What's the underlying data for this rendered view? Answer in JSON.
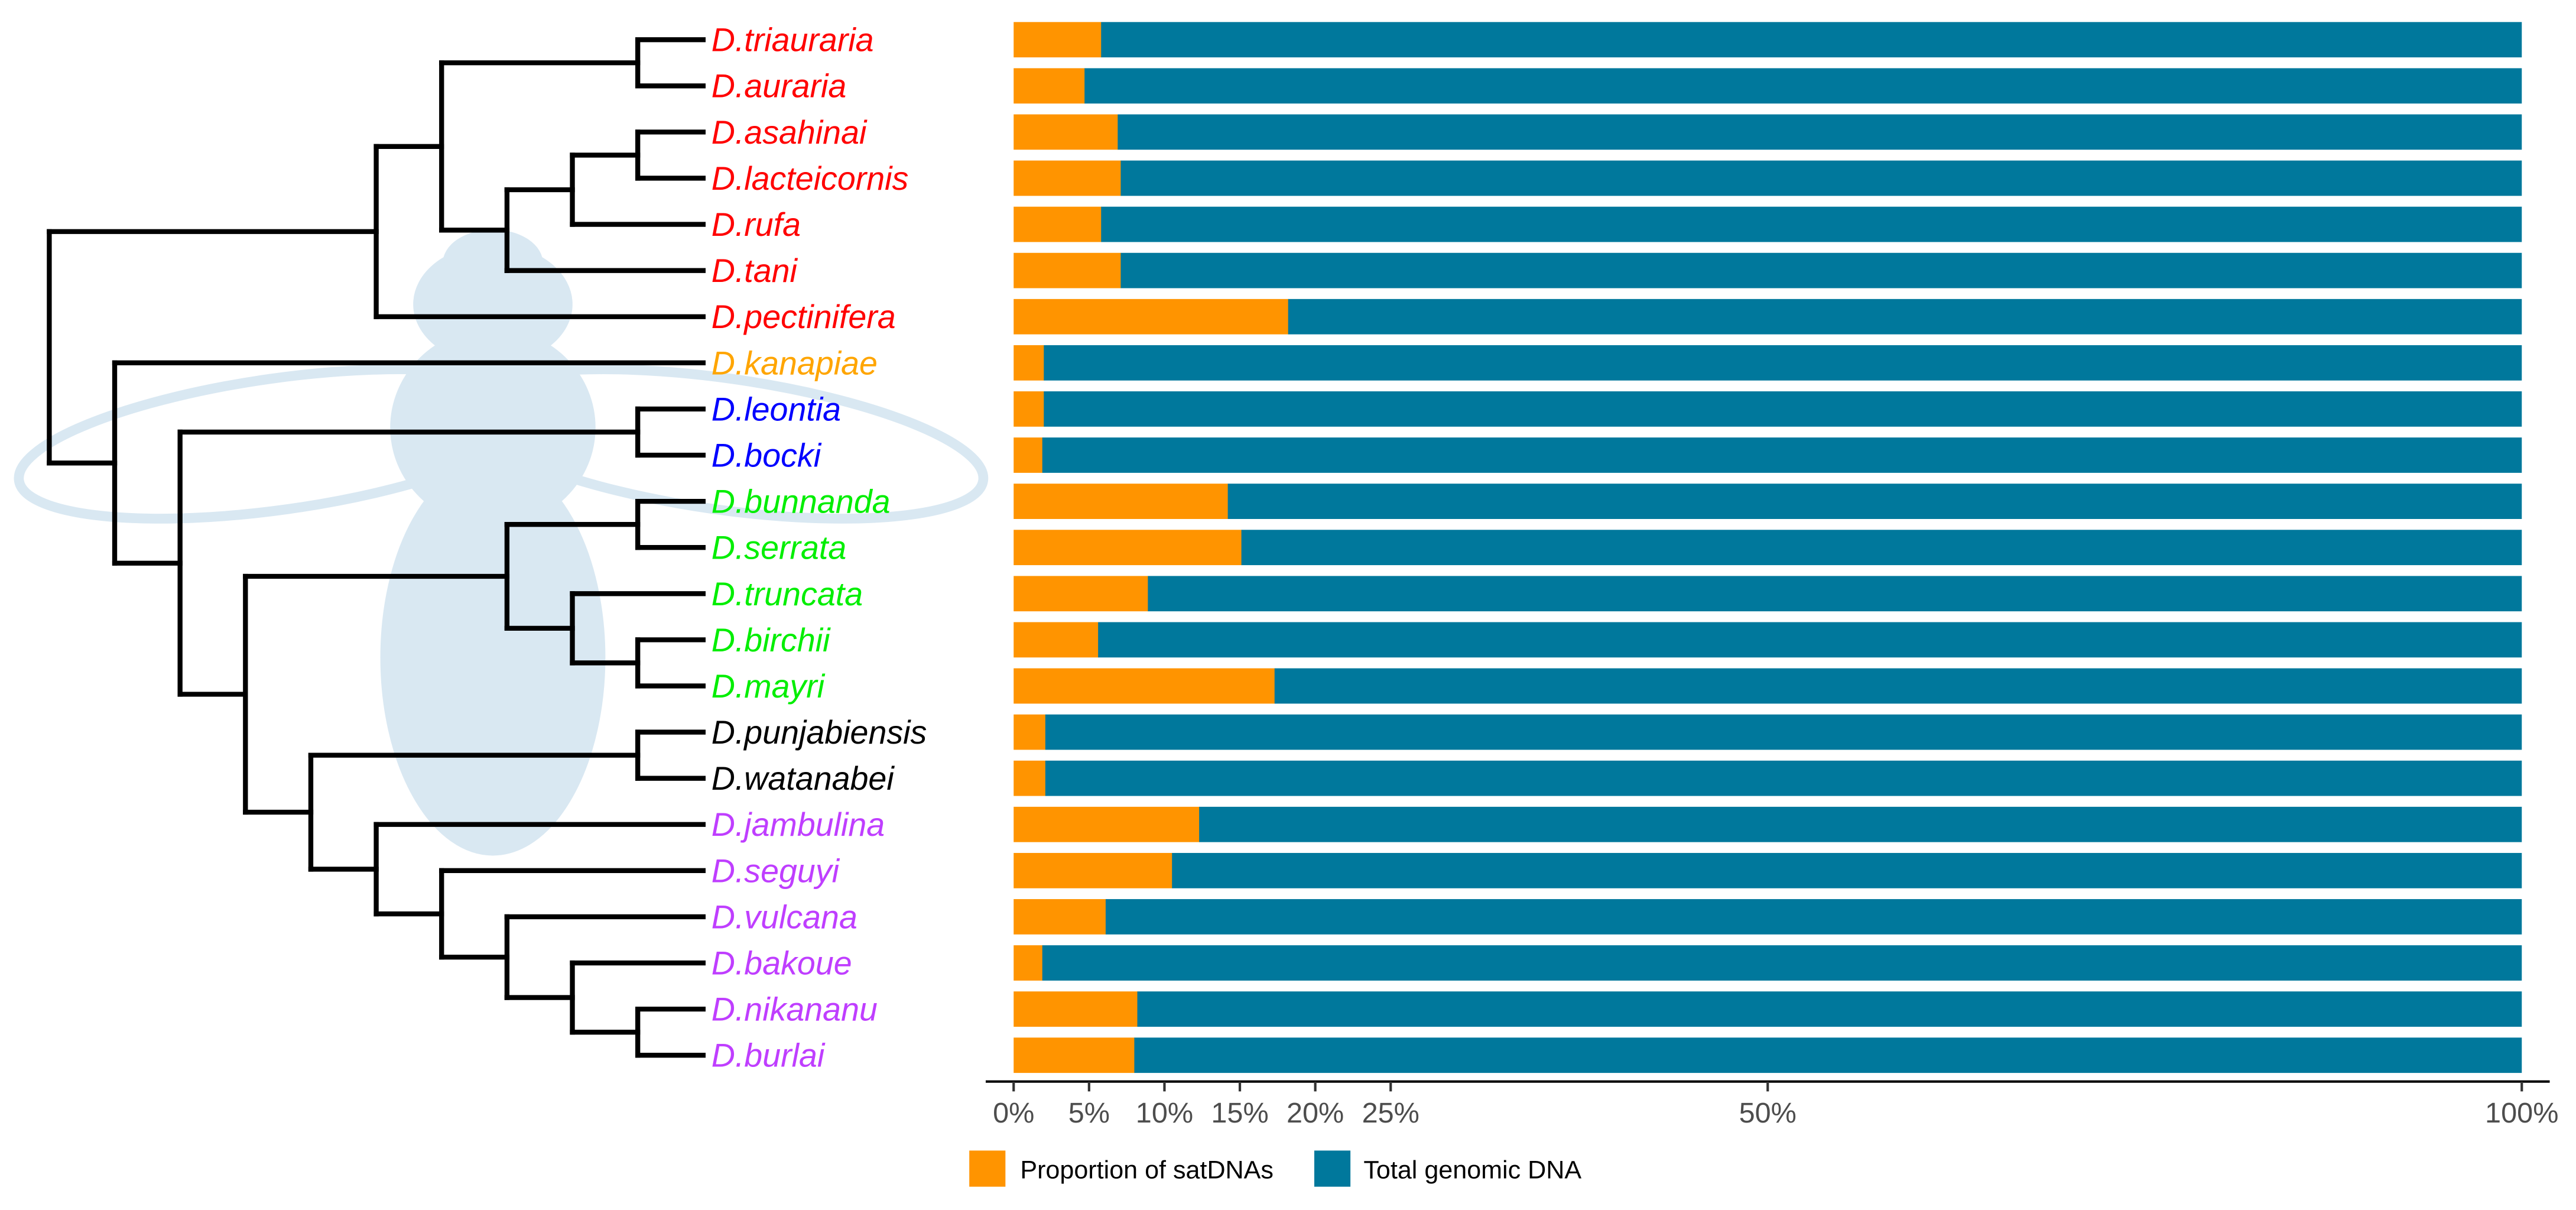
{
  "chart_data": {
    "type": "bar",
    "orientation": "horizontal",
    "stacked": true,
    "title": "",
    "xlabel": "",
    "ylabel": "",
    "xlim": [
      0,
      100
    ],
    "x_ticks": [
      0,
      5,
      10,
      15,
      20,
      25,
      50,
      100
    ],
    "x_tick_labels": [
      "0%",
      "5%",
      "10%",
      "15%",
      "20%",
      "25%",
      "50%",
      "100%"
    ],
    "grid": false,
    "legend_position": "bottom",
    "categories": [
      "D.triauraria",
      "D.auraria",
      "D.asahinai",
      "D.lacteicornis",
      "D.rufa",
      "D.tani",
      "D.pectinifera",
      "D.kanapiae",
      "D.leontia",
      "D.bocki",
      "D.bunnanda",
      "D.serrata",
      "D.truncata",
      "D.birchii",
      "D.mayri",
      "D.punjabiensis",
      "D.watanabei",
      "D.jambulina",
      "D.seguyi",
      "D.vulcana",
      "D.bakoue",
      "D.nikananu",
      "D.burlai"
    ],
    "label_colors": [
      "#FF0000",
      "#FF0000",
      "#FF0000",
      "#FF0000",
      "#FF0000",
      "#FF0000",
      "#FF0000",
      "#FFA500",
      "#0000FF",
      "#0000FF",
      "#00EE00",
      "#00EE00",
      "#00EE00",
      "#00EE00",
      "#00EE00",
      "#000000",
      "#000000",
      "#BF3EFF",
      "#BF3EFF",
      "#BF3EFF",
      "#BF3EFF",
      "#BF3EFF",
      "#BF3EFF"
    ],
    "series": [
      {
        "name": "Proportion of satDNAs",
        "color": "#FF9400",
        "values": [
          5.8,
          4.7,
          6.9,
          7.1,
          5.8,
          7.1,
          18.2,
          2.0,
          2.0,
          1.9,
          14.2,
          15.1,
          8.9,
          5.6,
          17.3,
          2.1,
          2.1,
          12.3,
          10.5,
          6.1,
          1.9,
          8.2,
          8.0
        ]
      },
      {
        "name": "Total genomic DNA",
        "color": "#00789C",
        "values": [
          94.2,
          95.3,
          93.1,
          92.9,
          94.2,
          92.9,
          81.8,
          98.0,
          98.0,
          98.1,
          85.8,
          84.9,
          91.1,
          94.4,
          82.7,
          97.9,
          97.9,
          87.7,
          89.5,
          93.9,
          98.1,
          91.8,
          92.0
        ]
      }
    ],
    "tree": [
      [
        [
          [
            0,
            1
          ],
          [
            [
              [
                2,
                3
              ],
              4
            ],
            5
          ]
        ],
        6
      ],
      [
        7,
        [
          [
            8,
            9
          ],
          [
            [
              [
                10,
                11
              ],
              [
                12,
                [
                  13,
                  14
                ]
              ]
            ],
            [
              [
                15,
                16
              ],
              [
                17,
                [
                  18,
                  [
                    19,
                    [
                      20,
                      [
                        21,
                        22
                      ]
                    ]
                  ]
                ]
              ]
            ]
          ]
        ]
      ]
    ]
  }
}
